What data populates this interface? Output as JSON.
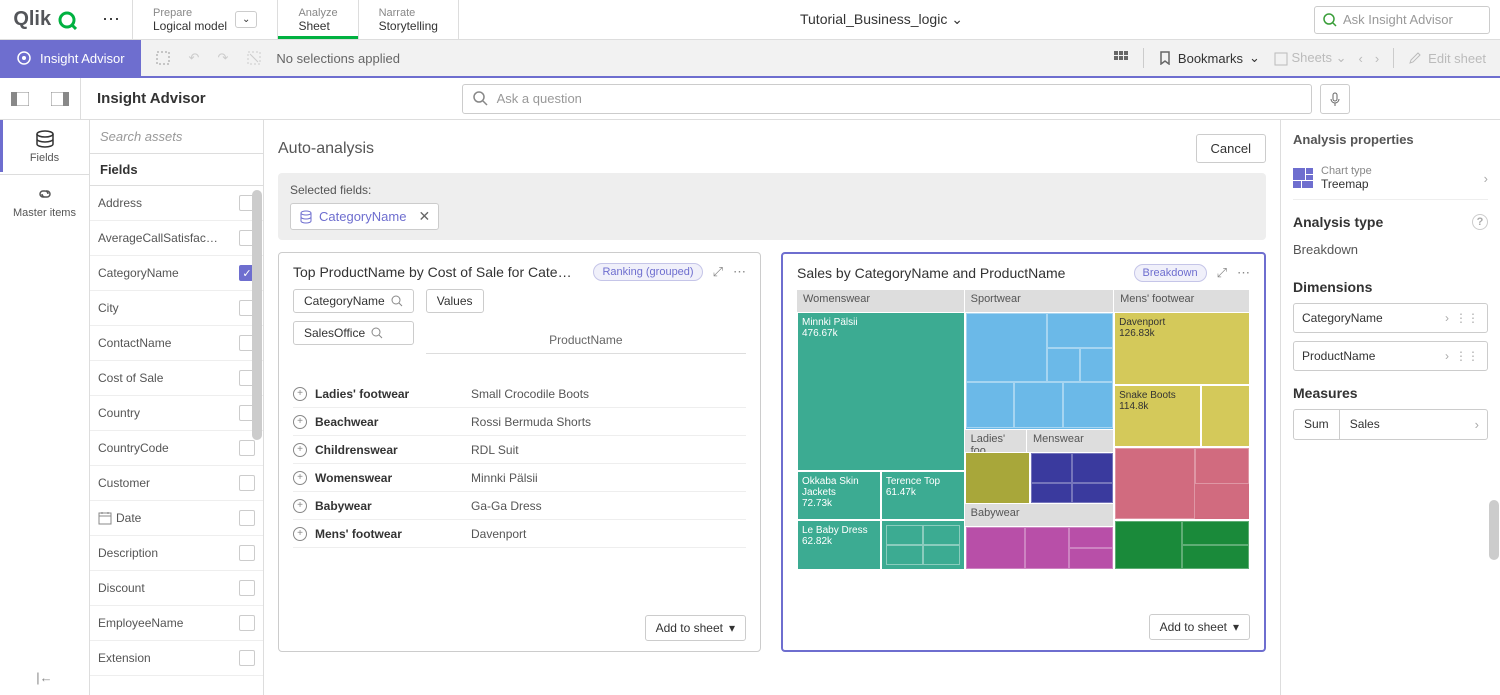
{
  "top": {
    "logo": "Qlik",
    "app_name": "Tutorial_Business_logic",
    "search_placeholder": "Ask Insight Advisor",
    "tabs": {
      "prepare": {
        "sub": "Prepare",
        "main": "Logical model"
      },
      "analyze": {
        "sub": "Analyze",
        "main": "Sheet"
      },
      "narrate": {
        "sub": "Narrate",
        "main": "Storytelling"
      }
    }
  },
  "selbar": {
    "insight": "Insight Advisor",
    "no_selections": "No selections applied",
    "bookmarks": "Bookmarks",
    "sheets": "Sheets",
    "edit": "Edit sheet"
  },
  "subbar": {
    "title": "Insight Advisor",
    "ask_placeholder": "Ask a question"
  },
  "rail": {
    "fields": "Fields",
    "master": "Master items"
  },
  "fields_panel": {
    "search_placeholder": "Search assets",
    "header": "Fields",
    "items": [
      {
        "name": "Address",
        "checked": false
      },
      {
        "name": "AverageCallSatisfac…",
        "checked": false
      },
      {
        "name": "CategoryName",
        "checked": true
      },
      {
        "name": "City",
        "checked": false
      },
      {
        "name": "ContactName",
        "checked": false
      },
      {
        "name": "Cost of Sale",
        "checked": false
      },
      {
        "name": "Country",
        "checked": false
      },
      {
        "name": "CountryCode",
        "checked": false
      },
      {
        "name": "Customer",
        "checked": false
      },
      {
        "name": "Date",
        "checked": false,
        "date": true
      },
      {
        "name": "Description",
        "checked": false
      },
      {
        "name": "Discount",
        "checked": false
      },
      {
        "name": "EmployeeName",
        "checked": false
      },
      {
        "name": "Extension",
        "checked": false
      }
    ]
  },
  "content": {
    "title": "Auto-analysis",
    "cancel": "Cancel",
    "selected_label": "Selected fields:",
    "chip": "CategoryName"
  },
  "card1": {
    "title": "Top ProductName by Cost of Sale for Cate…",
    "badge": "Ranking (grouped)",
    "pills": {
      "cat": "CategoryName",
      "office": "SalesOffice",
      "values": "Values",
      "product": "ProductName"
    },
    "rows": [
      {
        "cat": "Ladies' footwear",
        "prod": "Small Crocodile Boots"
      },
      {
        "cat": "Beachwear",
        "prod": "Rossi Bermuda Shorts"
      },
      {
        "cat": "Childrenswear",
        "prod": "RDL Suit"
      },
      {
        "cat": "Womenswear",
        "prod": "Minnki Pälsii"
      },
      {
        "cat": "Babywear",
        "prod": "Ga-Ga Dress"
      },
      {
        "cat": "Mens' footwear",
        "prod": "Davenport"
      }
    ],
    "add": "Add to sheet"
  },
  "card2": {
    "title": "Sales by CategoryName and ProductName",
    "badge": "Breakdown",
    "add": "Add to sheet",
    "headers": {
      "womenswear": "Womenswear",
      "sportwear": "Sportwear",
      "mens_footwear": "Mens' footwear",
      "ladies_foo": "Ladies' foo…",
      "menswear": "Menswear",
      "babywear": "Babywear"
    },
    "blocks": {
      "minnki": {
        "label": "Minnki Pälsii",
        "val": "476.67k",
        "color": "#3cab92"
      },
      "okkaba": {
        "label": "Okkaba Skin Jackets",
        "val": "72.73k",
        "color": "#3cab92"
      },
      "terence": {
        "label": "Terence Top",
        "val": "61.47k",
        "color": "#3cab92"
      },
      "lebaby": {
        "label": "Le Baby Dress",
        "val": "62.82k",
        "color": "#3cab92"
      },
      "sport": {
        "color": "#6bb9e8"
      },
      "davenport": {
        "label": "Davenport",
        "val": "126.83k",
        "color": "#d4c95a"
      },
      "snake": {
        "label": "Snake Boots",
        "val": "114.8k",
        "color": "#d4c95a"
      },
      "ladies": {
        "color": "#a8a73a"
      },
      "menswear": {
        "color": "#3a3a9e"
      },
      "babywear": {
        "color": "#b84fa8"
      },
      "pink": {
        "color": "#d16b7f"
      },
      "green": {
        "color": "#1a8a3a"
      }
    }
  },
  "props": {
    "title": "Analysis properties",
    "chart_type_label": "Chart type",
    "chart_type": "Treemap",
    "analysis_type_label": "Analysis type",
    "analysis_type": "Breakdown",
    "dimensions_label": "Dimensions",
    "dim1": "CategoryName",
    "dim2": "ProductName",
    "measures_label": "Measures",
    "measure_agg": "Sum",
    "measure_name": "Sales"
  }
}
